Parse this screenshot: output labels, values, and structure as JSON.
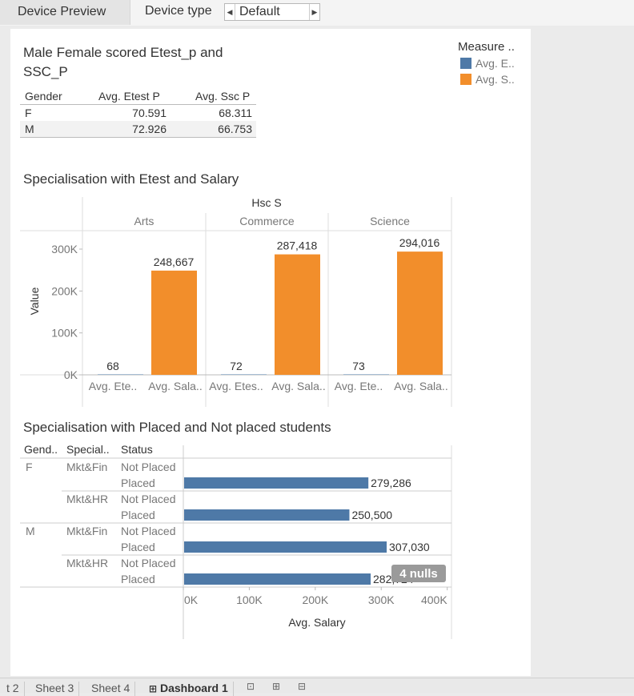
{
  "toolbar": {
    "device_preview_label": "Device Preview",
    "device_type_label": "Device type",
    "device_type_value": "Default"
  },
  "legend": {
    "title": "Measure ..",
    "items": [
      {
        "label": "Avg. E..",
        "color": "#4e79a7"
      },
      {
        "label": "Avg. S..",
        "color": "#f28e2b"
      }
    ]
  },
  "table1": {
    "title_line1": "Male Female scored Etest_p and",
    "title_line2": "SSC_P",
    "headers": [
      "Gender",
      "Avg. Etest P",
      "Avg. Ssc P"
    ],
    "rows": [
      {
        "gender": "F",
        "etest": "70.591",
        "ssc": "68.311"
      },
      {
        "gender": "M",
        "etest": "72.926",
        "ssc": "66.753"
      }
    ]
  },
  "chart1": {
    "title": "Specialisation with Etest and Salary",
    "header_top": "Hsc S",
    "ylabel": "Value",
    "chart_data": {
      "type": "bar",
      "categories": [
        "Arts",
        "Commerce",
        "Science"
      ],
      "measure_labels": [
        "Avg. Ete..",
        "Avg. Sala..",
        "Avg. Etes..",
        "Avg. Sala..",
        "Avg. Ete..",
        "Avg. Sala.."
      ],
      "series": [
        {
          "name": "Avg. Etest P",
          "values": [
            68,
            72,
            73
          ],
          "labels": [
            "68",
            "72",
            "73"
          ]
        },
        {
          "name": "Avg. Salary",
          "values": [
            248667,
            287418,
            294016
          ],
          "labels": [
            "248,667",
            "287,418",
            "294,016"
          ]
        }
      ],
      "yticks": [
        "0K",
        "100K",
        "200K",
        "300K"
      ],
      "ylim": [
        0,
        300000
      ]
    }
  },
  "chart2": {
    "title": "Specialisation with Placed and Not placed students",
    "headers": [
      "Gend..",
      "Special..",
      "Status"
    ],
    "xlabel": "Avg. Salary",
    "nulls_badge": "4 nulls",
    "chart_data": {
      "type": "bar",
      "orientation": "horizontal",
      "rows": [
        {
          "gender": "F",
          "spec": "Mkt&Fin",
          "status": "Not Placed",
          "value": null,
          "label": ""
        },
        {
          "gender": "",
          "spec": "",
          "status": "Placed",
          "value": 279286,
          "label": "279,286"
        },
        {
          "gender": "",
          "spec": "Mkt&HR",
          "status": "Not Placed",
          "value": null,
          "label": ""
        },
        {
          "gender": "",
          "spec": "",
          "status": "Placed",
          "value": 250500,
          "label": "250,500"
        },
        {
          "gender": "M",
          "spec": "Mkt&Fin",
          "status": "Not Placed",
          "value": null,
          "label": ""
        },
        {
          "gender": "",
          "spec": "",
          "status": "Placed",
          "value": 307030,
          "label": "307,030"
        },
        {
          "gender": "",
          "spec": "Mkt&HR",
          "status": "Not Placed",
          "value": null,
          "label": ""
        },
        {
          "gender": "",
          "spec": "",
          "status": "Placed",
          "value": 282724,
          "label": "282,724"
        }
      ],
      "xticks": [
        "0K",
        "100K",
        "200K",
        "300K",
        "400K"
      ],
      "xlim": [
        0,
        400000
      ],
      "color": "#4e79a7"
    }
  },
  "sheet_tabs": [
    "t 2",
    "Sheet 3",
    "Sheet 4",
    "Dashboard 1"
  ]
}
